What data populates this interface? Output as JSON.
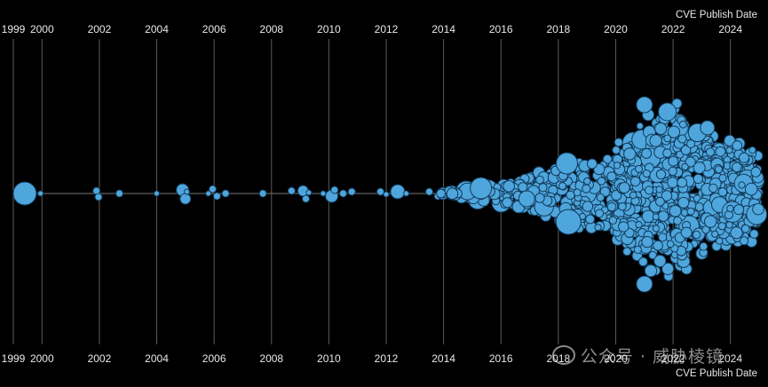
{
  "chart_data": {
    "type": "scatter",
    "title": "",
    "xlabel": "CVE Publish Date",
    "ylabel": "",
    "tick_years": [
      1999,
      2000,
      2002,
      2004,
      2006,
      2008,
      2010,
      2012,
      2014,
      2016,
      2018,
      2020,
      2022,
      2024
    ],
    "xlim": [
      1999,
      2025
    ],
    "grid": true,
    "bubble_color": "#4ea6dc",
    "dense_region": {
      "x_range": [
        2017.0,
        2025.0
      ],
      "peak_year": 2021.5
    },
    "points": [
      {
        "x": 1999.4,
        "y": 0,
        "size": 13
      },
      {
        "x": 1999.95,
        "y": 0,
        "size": 3
      },
      {
        "x": 2001.9,
        "y": 0.3,
        "size": 4
      },
      {
        "x": 2001.97,
        "y": -0.4,
        "size": 4
      },
      {
        "x": 2002.7,
        "y": 0,
        "size": 4
      },
      {
        "x": 2004.0,
        "y": 0,
        "size": 3
      },
      {
        "x": 2004.9,
        "y": 0.4,
        "size": 7
      },
      {
        "x": 2005.0,
        "y": -0.6,
        "size": 6
      },
      {
        "x": 2005.05,
        "y": 0.2,
        "size": 3
      },
      {
        "x": 2005.8,
        "y": 0,
        "size": 3
      },
      {
        "x": 2005.95,
        "y": 0.5,
        "size": 4
      },
      {
        "x": 2006.1,
        "y": -0.3,
        "size": 4
      },
      {
        "x": 2006.4,
        "y": 0,
        "size": 4
      },
      {
        "x": 2007.7,
        "y": 0,
        "size": 4
      },
      {
        "x": 2008.7,
        "y": 0.3,
        "size": 4
      },
      {
        "x": 2009.1,
        "y": 0.3,
        "size": 6
      },
      {
        "x": 2009.2,
        "y": -0.6,
        "size": 4
      },
      {
        "x": 2009.3,
        "y": 0.1,
        "size": 3
      },
      {
        "x": 2009.8,
        "y": 0,
        "size": 3
      },
      {
        "x": 2010.1,
        "y": -0.3,
        "size": 7
      },
      {
        "x": 2010.2,
        "y": 0.4,
        "size": 4
      },
      {
        "x": 2010.5,
        "y": 0,
        "size": 4
      },
      {
        "x": 2010.8,
        "y": 0.2,
        "size": 4
      },
      {
        "x": 2011.8,
        "y": 0.2,
        "size": 4
      },
      {
        "x": 2012.0,
        "y": -0.1,
        "size": 3
      },
      {
        "x": 2012.4,
        "y": 0.2,
        "size": 8
      },
      {
        "x": 2012.7,
        "y": 0,
        "size": 3
      },
      {
        "x": 2013.5,
        "y": 0.2,
        "size": 4
      },
      {
        "x": 2013.8,
        "y": -0.3,
        "size": 4
      }
    ]
  }
}
